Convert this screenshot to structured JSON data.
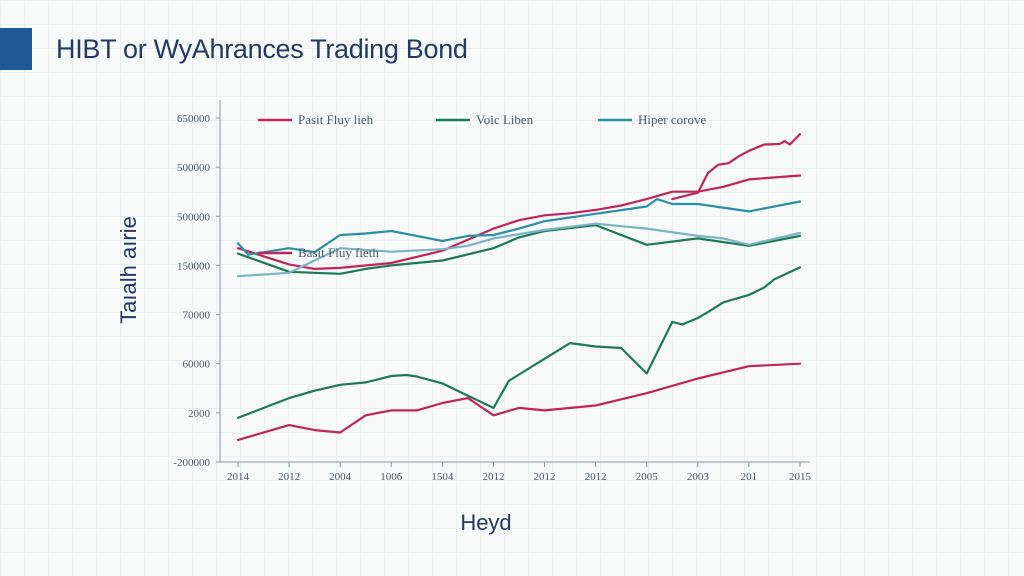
{
  "page": {
    "title": "HIBT or WyAhrances Trading Bond"
  },
  "chart_data": {
    "type": "line",
    "title": "HIBT or WyAhrances Trading Bond",
    "xlabel": "Heyd",
    "ylabel": "Taıalh aırie",
    "x_ticks": [
      "2014",
      "2012",
      "2004",
      "1006",
      "1504",
      "2012",
      "2012",
      "2012",
      "2005",
      "2003",
      "201",
      "2015"
    ],
    "y_ticks": [
      "650000",
      "500000",
      "500000",
      "150000",
      "70000",
      "60000",
      "2000",
      "-200000"
    ],
    "ylim": [
      0,
      7
    ],
    "xlim": [
      0,
      11
    ],
    "grid": false,
    "legend": {
      "placement": "top",
      "entries": [
        {
          "label": "Pasit Fluy lieh",
          "color": "#c2245e"
        },
        {
          "label": "Voic Liben",
          "color": "#1d7a56"
        },
        {
          "label": "Hiper corove",
          "color": "#2a8fa8"
        }
      ],
      "annotation": {
        "label": "Basit Fluy fieth",
        "color": "#c2245e"
      }
    },
    "series": [
      {
        "color": "#c2245e",
        "points": [
          [
            0,
            4.35
          ],
          [
            1,
            4.02
          ],
          [
            1.5,
            3.93
          ],
          [
            2,
            3.95
          ],
          [
            3,
            4.05
          ],
          [
            4,
            4.3
          ],
          [
            5,
            4.75
          ],
          [
            5.5,
            4.92
          ],
          [
            6,
            5.02
          ],
          [
            6.5,
            5.06
          ],
          [
            7,
            5.13
          ],
          [
            7.5,
            5.22
          ],
          [
            8,
            5.35
          ],
          [
            8.5,
            5.5
          ],
          [
            9,
            5.5
          ],
          [
            9.5,
            5.6
          ],
          [
            10,
            5.75
          ],
          [
            11,
            5.83
          ]
        ]
      },
      {
        "color": "#c2245e",
        "points": [
          [
            8.5,
            5.35
          ],
          [
            9,
            5.48
          ],
          [
            9.2,
            5.88
          ],
          [
            9.4,
            6.05
          ],
          [
            9.6,
            6.08
          ],
          [
            9.8,
            6.22
          ],
          [
            10,
            6.33
          ],
          [
            10.3,
            6.46
          ],
          [
            10.6,
            6.47
          ],
          [
            10.7,
            6.53
          ],
          [
            10.8,
            6.46
          ],
          [
            11,
            6.67
          ]
        ]
      },
      {
        "color": "#1d7a56",
        "points": [
          [
            0,
            4.24
          ],
          [
            1,
            3.87
          ],
          [
            1.5,
            3.85
          ],
          [
            2,
            3.83
          ],
          [
            2.5,
            3.93
          ],
          [
            3,
            4.0
          ],
          [
            4,
            4.1
          ],
          [
            5,
            4.35
          ],
          [
            5.5,
            4.57
          ],
          [
            6,
            4.7
          ],
          [
            7,
            4.82
          ],
          [
            8,
            4.42
          ],
          [
            9,
            4.55
          ],
          [
            10,
            4.4
          ],
          [
            11,
            4.6
          ]
        ]
      },
      {
        "color": "#1d7a56",
        "points": [
          [
            0,
            0.9
          ],
          [
            1,
            1.3
          ],
          [
            1.5,
            1.45
          ],
          [
            2,
            1.57
          ],
          [
            2.5,
            1.62
          ],
          [
            3,
            1.75
          ],
          [
            3.3,
            1.77
          ],
          [
            3.5,
            1.74
          ],
          [
            4,
            1.6
          ],
          [
            4.5,
            1.35
          ],
          [
            5,
            1.1
          ],
          [
            5.3,
            1.65
          ],
          [
            5.5,
            1.78
          ],
          [
            6,
            2.1
          ],
          [
            6.5,
            2.42
          ],
          [
            7,
            2.35
          ],
          [
            7.5,
            2.32
          ],
          [
            8,
            1.8
          ],
          [
            8.5,
            2.85
          ],
          [
            8.7,
            2.8
          ],
          [
            9,
            2.93
          ],
          [
            9.2,
            3.05
          ],
          [
            9.5,
            3.25
          ],
          [
            10,
            3.4
          ],
          [
            10.3,
            3.55
          ],
          [
            10.5,
            3.72
          ],
          [
            11,
            3.96
          ]
        ]
      },
      {
        "color": "#c2245e",
        "points": [
          [
            0,
            0.45
          ],
          [
            1,
            0.75
          ],
          [
            1.5,
            0.65
          ],
          [
            2,
            0.6
          ],
          [
            2.5,
            0.95
          ],
          [
            3,
            1.05
          ],
          [
            3.5,
            1.05
          ],
          [
            4,
            1.2
          ],
          [
            4.5,
            1.3
          ],
          [
            5,
            0.95
          ],
          [
            5.5,
            1.1
          ],
          [
            6,
            1.05
          ],
          [
            7,
            1.15
          ],
          [
            8,
            1.4
          ],
          [
            9,
            1.7
          ],
          [
            10,
            1.95
          ],
          [
            11,
            2.0
          ]
        ]
      },
      {
        "color": "#2a8fa8",
        "points": [
          [
            0,
            4.45
          ],
          [
            0.2,
            4.22
          ],
          [
            1,
            4.35
          ],
          [
            1.5,
            4.27
          ],
          [
            2,
            4.62
          ],
          [
            2.5,
            4.65
          ],
          [
            3,
            4.7
          ],
          [
            4,
            4.5
          ],
          [
            4.5,
            4.6
          ],
          [
            5,
            4.62
          ],
          [
            5.5,
            4.75
          ],
          [
            6,
            4.9
          ],
          [
            7,
            5.05
          ],
          [
            8,
            5.2
          ],
          [
            8.2,
            5.35
          ],
          [
            8.5,
            5.25
          ],
          [
            9,
            5.25
          ],
          [
            10,
            5.1
          ],
          [
            11,
            5.3
          ]
        ]
      },
      {
        "color": "#7bb3c4",
        "points": [
          [
            0,
            3.78
          ],
          [
            1,
            3.85
          ],
          [
            1.5,
            4.1
          ],
          [
            2,
            4.35
          ],
          [
            3,
            4.28
          ],
          [
            4,
            4.33
          ],
          [
            4.5,
            4.4
          ],
          [
            5,
            4.55
          ],
          [
            6,
            4.72
          ],
          [
            7,
            4.85
          ],
          [
            8,
            4.75
          ],
          [
            9,
            4.6
          ],
          [
            9.5,
            4.55
          ],
          [
            10,
            4.42
          ],
          [
            11,
            4.66
          ]
        ]
      }
    ]
  }
}
